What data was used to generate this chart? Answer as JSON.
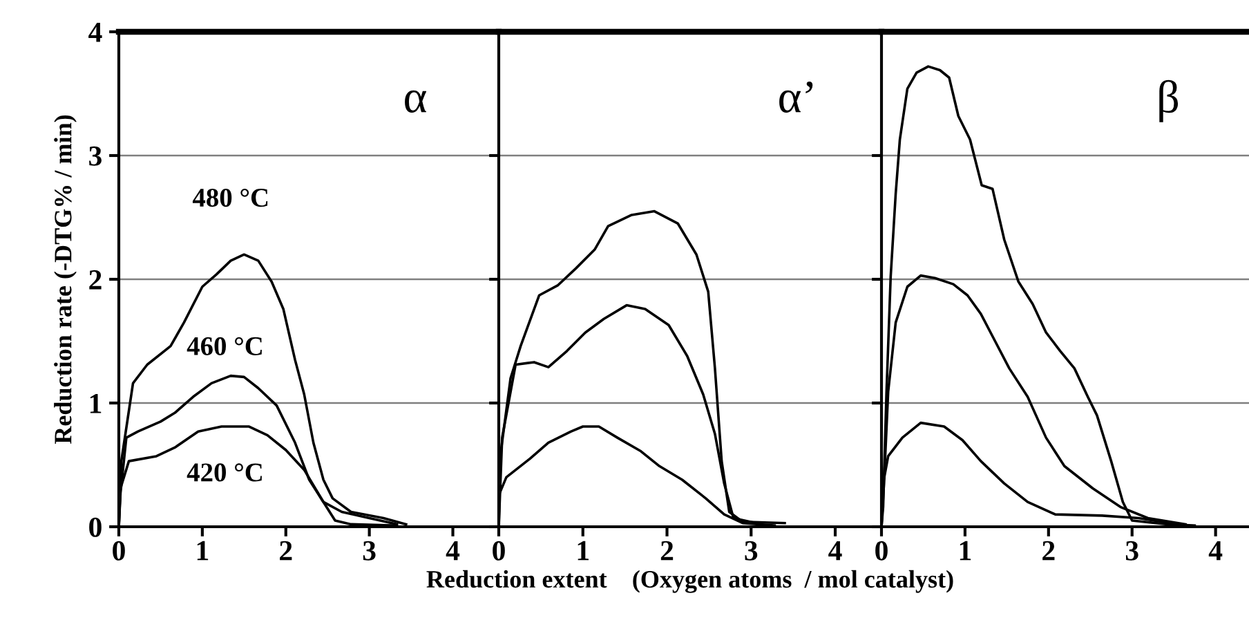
{
  "chart_data": [
    {
      "type": "line",
      "title": "α",
      "ylabel": "Reduction rate (-DTG% / min)",
      "xlim": [
        0,
        4.55
      ],
      "ylim": [
        0,
        4
      ],
      "xticks": [
        0,
        1,
        2,
        3,
        4
      ],
      "yticks": [
        0,
        1,
        2,
        3,
        4
      ],
      "grid": "y",
      "marker": "none",
      "line_style": "solid",
      "annotations": [
        "480 °C",
        "460 °C",
        "420 °C"
      ],
      "series": [
        {
          "color": "#000000",
          "x": [
            0,
            0.03,
            0.17,
            0.34,
            0.62,
            0.78,
            1.0,
            1.17,
            1.34,
            1.5,
            1.67,
            1.83,
            1.97,
            2.11,
            2.22,
            2.33,
            2.45,
            2.56,
            2.78,
            3.17,
            3.44
          ],
          "values": [
            0,
            0.53,
            1.16,
            1.31,
            1.46,
            1.65,
            1.94,
            2.04,
            2.15,
            2.2,
            2.15,
            1.98,
            1.76,
            1.35,
            1.07,
            0.68,
            0.38,
            0.23,
            0.12,
            0.07,
            0.02
          ]
        },
        {
          "color": "#000000",
          "x": [
            0,
            0.02,
            0.09,
            0.23,
            0.5,
            0.67,
            0.89,
            1.11,
            1.34,
            1.5,
            1.67,
            1.89,
            2.11,
            2.28,
            2.45,
            2.67,
            3.0,
            3.33
          ],
          "values": [
            0,
            0.27,
            0.72,
            0.77,
            0.85,
            0.92,
            1.05,
            1.16,
            1.22,
            1.21,
            1.12,
            0.98,
            0.68,
            0.38,
            0.2,
            0.12,
            0.07,
            0.02
          ]
        },
        {
          "color": "#000000",
          "x": [
            0,
            0.02,
            0.12,
            0.45,
            0.67,
            0.95,
            1.23,
            1.56,
            1.78,
            2.0,
            2.22,
            2.45,
            2.59,
            2.78,
            3.33
          ],
          "values": [
            0,
            0.31,
            0.53,
            0.57,
            0.64,
            0.77,
            0.81,
            0.81,
            0.74,
            0.62,
            0.46,
            0.2,
            0.05,
            0.02,
            0.01
          ]
        }
      ]
    },
    {
      "type": "line",
      "title": "α’",
      "xlabel": "Reduction extent    (Oxygen atoms  / mol catalyst)",
      "xlim": [
        0,
        4.55
      ],
      "ylim": [
        0,
        4
      ],
      "xticks": [
        0,
        1,
        2,
        3,
        4
      ],
      "yticks": [
        0,
        1,
        2,
        3,
        4
      ],
      "tick_labels": "x",
      "grid": "y",
      "marker": "none",
      "line_style": "solid",
      "series": [
        {
          "color": "#000000",
          "x": [
            0,
            0.01,
            0.14,
            0.26,
            0.48,
            0.7,
            0.92,
            1.14,
            1.3,
            1.58,
            1.85,
            2.13,
            2.35,
            2.49,
            2.57,
            2.65,
            2.74,
            2.9,
            3.4
          ],
          "values": [
            0,
            0.53,
            1.2,
            1.46,
            1.87,
            1.95,
            2.09,
            2.24,
            2.43,
            2.52,
            2.55,
            2.45,
            2.2,
            1.9,
            1.28,
            0.53,
            0.12,
            0.04,
            0.03
          ]
        },
        {
          "color": "#000000",
          "x": [
            0,
            0.04,
            0.2,
            0.42,
            0.59,
            0.81,
            1.03,
            1.25,
            1.52,
            1.74,
            2.02,
            2.24,
            2.43,
            2.57,
            2.68,
            2.79,
            3.12
          ],
          "values": [
            0,
            0.72,
            1.31,
            1.33,
            1.29,
            1.42,
            1.57,
            1.68,
            1.79,
            1.76,
            1.63,
            1.38,
            1.07,
            0.75,
            0.35,
            0.07,
            0.02
          ]
        },
        {
          "color": "#000000",
          "x": [
            0,
            0.01,
            0.09,
            0.37,
            0.59,
            0.86,
            1.0,
            1.19,
            1.41,
            1.69,
            1.91,
            2.18,
            2.46,
            2.68,
            2.9,
            3.28
          ],
          "values": [
            0,
            0.27,
            0.4,
            0.55,
            0.68,
            0.77,
            0.81,
            0.81,
            0.72,
            0.61,
            0.49,
            0.38,
            0.23,
            0.1,
            0.03,
            0.01
          ]
        }
      ]
    },
    {
      "type": "line",
      "title": "β",
      "xlim": [
        0,
        4.4
      ],
      "ylim": [
        0,
        4
      ],
      "xticks": [
        0,
        1,
        2,
        3,
        4
      ],
      "yticks": [
        0,
        1,
        2,
        3,
        4
      ],
      "tick_labels": "x",
      "grid": "y",
      "marker": "none",
      "line_style": "solid",
      "series": [
        {
          "color": "#000000",
          "x": [
            0,
            0.02,
            0.06,
            0.11,
            0.17,
            0.22,
            0.31,
            0.42,
            0.56,
            0.7,
            0.81,
            0.92,
            1.06,
            1.2,
            1.33,
            1.47,
            1.64,
            1.81,
            1.97,
            2.14,
            2.31,
            2.47,
            2.58,
            2.75,
            2.89,
            3.0,
            3.42,
            3.75
          ],
          "values": [
            0,
            0.16,
            1.09,
            2.02,
            2.69,
            3.13,
            3.54,
            3.67,
            3.72,
            3.69,
            3.63,
            3.32,
            3.13,
            2.76,
            2.73,
            2.32,
            1.98,
            1.8,
            1.57,
            1.42,
            1.28,
            1.05,
            0.9,
            0.53,
            0.2,
            0.05,
            0.02,
            0.01
          ]
        },
        {
          "color": "#000000",
          "x": [
            0,
            0.03,
            0.08,
            0.17,
            0.31,
            0.47,
            0.64,
            0.86,
            1.03,
            1.19,
            1.36,
            1.53,
            1.75,
            1.97,
            2.19,
            2.53,
            2.86,
            3.19,
            3.64
          ],
          "values": [
            0,
            0.35,
            1.09,
            1.65,
            1.94,
            2.03,
            2.01,
            1.96,
            1.87,
            1.72,
            1.5,
            1.28,
            1.05,
            0.72,
            0.49,
            0.31,
            0.16,
            0.07,
            0.02
          ]
        },
        {
          "color": "#000000",
          "x": [
            0,
            0.02,
            0.08,
            0.25,
            0.47,
            0.75,
            0.97,
            1.19,
            1.47,
            1.75,
            2.08,
            2.64,
            3.08,
            3.64
          ],
          "values": [
            0,
            0.35,
            0.57,
            0.72,
            0.84,
            0.81,
            0.7,
            0.53,
            0.35,
            0.2,
            0.1,
            0.09,
            0.07,
            0.01
          ]
        }
      ]
    }
  ]
}
